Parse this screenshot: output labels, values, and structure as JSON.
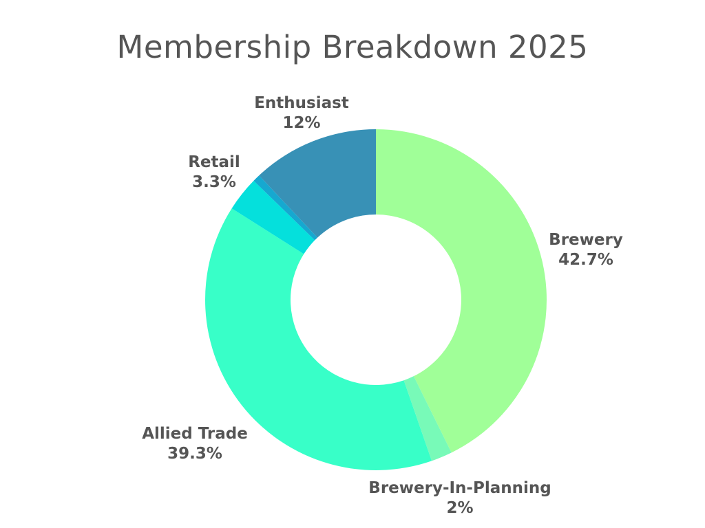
{
  "chart_data": {
    "type": "pie",
    "title": "Membership Breakdown 2025",
    "donut": true,
    "slices": [
      {
        "name": "Brewery",
        "value": 42.7,
        "label": "42.7%",
        "color": "#a0ff98"
      },
      {
        "name": "Brewery-In-Planning",
        "value": 2,
        "label": "2%",
        "color": "#78fab8"
      },
      {
        "name": "Allied Trade",
        "value": 39.3,
        "label": "39.3%",
        "color": "#38ffc8"
      },
      {
        "name": "Retail",
        "value": 3.3,
        "label": "3.3%",
        "color": "#05e0dc"
      },
      {
        "name": "",
        "value": 0.7,
        "label": "",
        "color": "#16a8d0"
      },
      {
        "name": "Enthusiast",
        "value": 12,
        "label": "12%",
        "color": "#3891b6"
      }
    ],
    "legend": "none",
    "direction": "clockwise from top"
  }
}
